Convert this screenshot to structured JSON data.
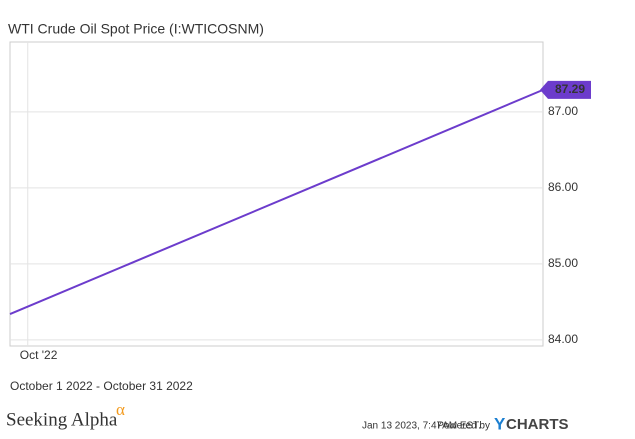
{
  "chart_data": {
    "type": "line",
    "title": "WTI Crude Oil Spot Price (I:WTICOSNM)",
    "subtitle": "October 1 2022 - October 31 2022",
    "x": [
      1,
      31
    ],
    "xlim": [
      1,
      31
    ],
    "xticks": [
      {
        "value": 2,
        "label": "Oct '22"
      }
    ],
    "series": [
      {
        "name": "WTI Crude Oil Spot Price",
        "color": "#6c3ccc",
        "values": [
          84.34,
          87.29
        ]
      }
    ],
    "ylim": [
      83.92,
      87.92
    ],
    "yticks": [
      {
        "value": 84,
        "label": "84.00"
      },
      {
        "value": 85,
        "label": "85.00"
      },
      {
        "value": 86,
        "label": "86.00"
      },
      {
        "value": 87,
        "label": "87.00"
      }
    ],
    "grid": true
  },
  "footer": {
    "brand": "Seeking Alpha",
    "brand_mark": "α",
    "timestamp": "Jan 13 2023, 7:47AM EST.",
    "powered": "Powered by",
    "provider_y": "Y",
    "provider": "CHARTS"
  }
}
